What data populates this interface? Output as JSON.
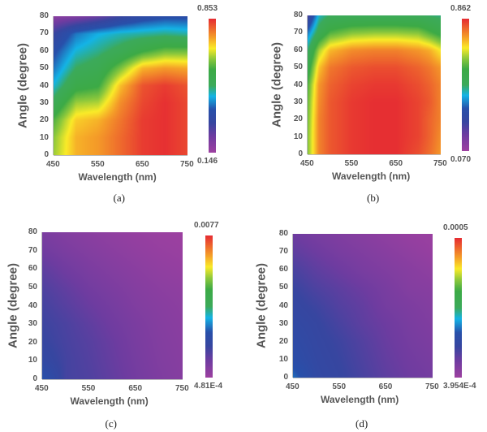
{
  "chart_data": [
    {
      "type": "heatmap",
      "panel_label": "(a)",
      "xlabel": "Wavelength (nm)",
      "ylabel": "Angle (degree)",
      "xlim": [
        450,
        750
      ],
      "ylim": [
        0,
        80
      ],
      "xticks": [
        "450",
        "550",
        "650",
        "750"
      ],
      "yticks": [
        "0",
        "10",
        "20",
        "30",
        "40",
        "50",
        "60",
        "70",
        "80"
      ],
      "colorbar": {
        "min_label": "0.146",
        "max_label": "0.853",
        "min": 0.146,
        "max": 0.853
      },
      "x": [
        450,
        500,
        550,
        600,
        650,
        700,
        750
      ],
      "y": [
        0,
        10,
        20,
        30,
        40,
        50,
        60,
        70,
        80
      ],
      "z": [
        [
          0.65,
          0.74,
          0.76,
          0.8,
          0.84,
          0.85,
          0.83
        ],
        [
          0.64,
          0.74,
          0.76,
          0.8,
          0.84,
          0.85,
          0.83
        ],
        [
          0.6,
          0.72,
          0.74,
          0.79,
          0.84,
          0.85,
          0.83
        ],
        [
          0.52,
          0.65,
          0.66,
          0.77,
          0.83,
          0.85,
          0.83
        ],
        [
          0.45,
          0.56,
          0.58,
          0.73,
          0.82,
          0.84,
          0.82
        ],
        [
          0.4,
          0.5,
          0.53,
          0.63,
          0.74,
          0.76,
          0.75
        ],
        [
          0.36,
          0.45,
          0.48,
          0.52,
          0.58,
          0.62,
          0.62
        ],
        [
          0.3,
          0.4,
          0.44,
          0.46,
          0.47,
          0.48,
          0.47
        ],
        [
          0.18,
          0.2,
          0.24,
          0.3,
          0.34,
          0.36,
          0.36
        ]
      ]
    },
    {
      "type": "heatmap",
      "panel_label": "(b)",
      "xlabel": "Wavelength (nm)",
      "ylabel": "Angle (degree)",
      "xlim": [
        450,
        750
      ],
      "ylim": [
        0,
        80
      ],
      "xticks": [
        "450",
        "550",
        "650",
        "750"
      ],
      "yticks": [
        "0",
        "10",
        "20",
        "30",
        "40",
        "50",
        "60",
        "70",
        "80"
      ],
      "colorbar": {
        "min_label": "0.070",
        "max_label": "0.862",
        "min": 0.07,
        "max": 0.862
      },
      "x": [
        450,
        475,
        500,
        550,
        600,
        650,
        700,
        725,
        750
      ],
      "y": [
        0,
        10,
        20,
        30,
        40,
        50,
        60,
        70,
        80
      ],
      "z": [
        [
          0.62,
          0.78,
          0.82,
          0.85,
          0.86,
          0.86,
          0.83,
          0.8,
          0.76
        ],
        [
          0.62,
          0.78,
          0.82,
          0.85,
          0.86,
          0.86,
          0.84,
          0.81,
          0.77
        ],
        [
          0.61,
          0.78,
          0.82,
          0.85,
          0.86,
          0.86,
          0.84,
          0.81,
          0.78
        ],
        [
          0.6,
          0.77,
          0.82,
          0.85,
          0.86,
          0.86,
          0.84,
          0.82,
          0.78
        ],
        [
          0.58,
          0.76,
          0.81,
          0.84,
          0.85,
          0.85,
          0.83,
          0.81,
          0.78
        ],
        [
          0.52,
          0.72,
          0.79,
          0.82,
          0.83,
          0.83,
          0.81,
          0.79,
          0.76
        ],
        [
          0.46,
          0.64,
          0.73,
          0.77,
          0.78,
          0.78,
          0.76,
          0.74,
          0.69
        ],
        [
          0.36,
          0.5,
          0.58,
          0.62,
          0.63,
          0.63,
          0.62,
          0.58,
          0.54
        ],
        [
          0.22,
          0.42,
          0.47,
          0.48,
          0.48,
          0.48,
          0.47,
          0.46,
          0.45
        ]
      ]
    },
    {
      "type": "heatmap",
      "panel_label": "(c)",
      "xlabel": "Wavelength (nm)",
      "ylabel": "Angle (degree)",
      "xlim": [
        450,
        750
      ],
      "ylim": [
        0,
        80
      ],
      "xticks": [
        "450",
        "550",
        "650",
        "750"
      ],
      "yticks": [
        "0",
        "10",
        "20",
        "30",
        "40",
        "50",
        "60",
        "70",
        "80"
      ],
      "colorbar": {
        "min_label": "4.81E-4",
        "max_label": "0.0077",
        "min": 0.000481,
        "max": 0.0077
      },
      "x": [
        450,
        500,
        550,
        600,
        650,
        700,
        750
      ],
      "y": [
        0,
        10,
        20,
        30,
        40,
        50,
        60,
        70,
        80
      ],
      "z": [
        [
          0.0028,
          0.0019,
          0.00175,
          0.0015,
          0.00125,
          0.00105,
          0.0009
        ],
        [
          0.0023,
          0.0019,
          0.0017,
          0.00145,
          0.0012,
          0.001,
          0.00088
        ],
        [
          0.0021,
          0.00185,
          0.00165,
          0.0014,
          0.00115,
          0.00097,
          0.00085
        ],
        [
          0.002,
          0.0018,
          0.00155,
          0.0013,
          0.0011,
          0.00093,
          0.00082
        ],
        [
          0.0019,
          0.00165,
          0.0014,
          0.0012,
          0.001,
          0.00088,
          0.00078
        ],
        [
          0.00175,
          0.0015,
          0.00125,
          0.00108,
          0.00092,
          0.0008,
          0.00072
        ],
        [
          0.00155,
          0.0013,
          0.0011,
          0.00095,
          0.00082,
          0.0007,
          0.00062
        ],
        [
          0.0013,
          0.0011,
          0.00095,
          0.00082,
          0.0007,
          0.0006,
          0.00054
        ],
        [
          0.0011,
          0.00095,
          0.00082,
          0.0007,
          0.0006,
          0.00052,
          0.00048
        ]
      ]
    },
    {
      "type": "heatmap",
      "panel_label": "(d)",
      "xlabel": "Wavelength (nm)",
      "ylabel": "Angle (degree)",
      "xlim": [
        450,
        750
      ],
      "ylim": [
        0,
        80
      ],
      "xticks": [
        "450",
        "550",
        "650",
        "750"
      ],
      "yticks": [
        "0",
        "10",
        "20",
        "30",
        "40",
        "50",
        "60",
        "70",
        "80"
      ],
      "colorbar": {
        "min_label": "3.954E-4",
        "max_label": "0.0005",
        "min": 0.0003954,
        "max": 0.0005
      },
      "x": [
        450,
        500,
        550,
        600,
        650,
        700,
        750
      ],
      "y": [
        0,
        10,
        20,
        30,
        40,
        50,
        60,
        70,
        80
      ],
      "z": [
        [
          0.000432,
          0.000422,
          0.000419,
          0.000415,
          0.000411,
          0.000408,
          0.000406
        ],
        [
          0.000426,
          0.000421,
          0.000418,
          0.000414,
          0.00041,
          0.000407,
          0.000405
        ],
        [
          0.000424,
          0.00042,
          0.000417,
          0.000413,
          0.000409,
          0.000406,
          0.000404
        ],
        [
          0.000422,
          0.000419,
          0.000415,
          0.000411,
          0.000408,
          0.000405,
          0.000403
        ],
        [
          0.00042,
          0.000417,
          0.000413,
          0.00041,
          0.000406,
          0.000404,
          0.000402
        ],
        [
          0.000418,
          0.000414,
          0.000411,
          0.000408,
          0.000405,
          0.000402,
          0.000401
        ],
        [
          0.000415,
          0.000411,
          0.000408,
          0.000405,
          0.000403,
          0.000401,
          0.000399
        ],
        [
          0.000411,
          0.000408,
          0.000405,
          0.000403,
          0.000401,
          0.000399,
          0.000397
        ],
        [
          0.000408,
          0.000405,
          0.000403,
          0.000401,
          0.000399,
          0.000397,
          0.000396
        ]
      ]
    }
  ]
}
